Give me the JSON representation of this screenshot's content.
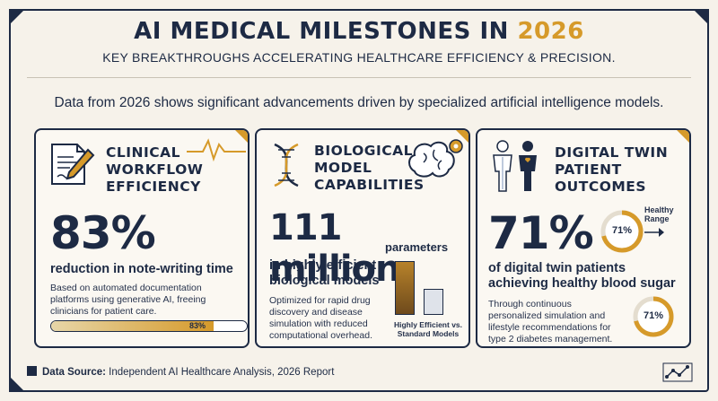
{
  "header": {
    "title_main": "AI MEDICAL MILESTONES IN",
    "title_year": "2026",
    "subtitle": "KEY BREAKTHROUGHS ACCELERATING HEALTHCARE EFFICIENCY & PRECISION.",
    "intro": "Data from 2026 shows significant advancements driven by specialized artificial intelligence models."
  },
  "cards": [
    {
      "title_lines": [
        "CLINICAL",
        "WORKFLOW",
        "EFFICIENCY"
      ],
      "big_value": "83%",
      "subtitle": "reduction in note-writing time",
      "description": "Based on automated documentation platforms using generative AI, freeing clinicians for patient care.",
      "progress": {
        "value": 0.83,
        "label": "83%"
      }
    },
    {
      "title_lines": [
        "BIOLOGICAL",
        "MODEL",
        "CAPABILITIES"
      ],
      "big_value": "111 million",
      "unit": "parameters",
      "subtitle_lines": [
        "in highly efficient",
        "biological models"
      ],
      "description": "Optimized for rapid drug discovery and disease simulation with reduced computational overhead.",
      "comparison": {
        "label_lines": [
          "Highly Efficient vs.",
          "Standard Models"
        ],
        "values": [
          1.0,
          0.48
        ]
      }
    },
    {
      "title_lines": [
        "DIGITAL TWIN",
        "PATIENT",
        "OUTCOMES"
      ],
      "big_value": "71%",
      "ring_value": 0.71,
      "ring_label": "71%",
      "range_label_lines": [
        "Healthy",
        "Range"
      ],
      "subtitle_lines": [
        "of digital twin patients",
        "achieving healthy blood sugar"
      ],
      "description": "Through continuous personalized simulation and lifestyle recommendations for type 2 diabetes management.",
      "ring2_label": "71%"
    }
  ],
  "footer": {
    "label": "Data Source:",
    "text": "Independent AI Healthcare Analysis, 2026 Report"
  },
  "colors": {
    "navy": "#1d2a44",
    "gold": "#d69a2a",
    "background": "#f6f2ea"
  }
}
